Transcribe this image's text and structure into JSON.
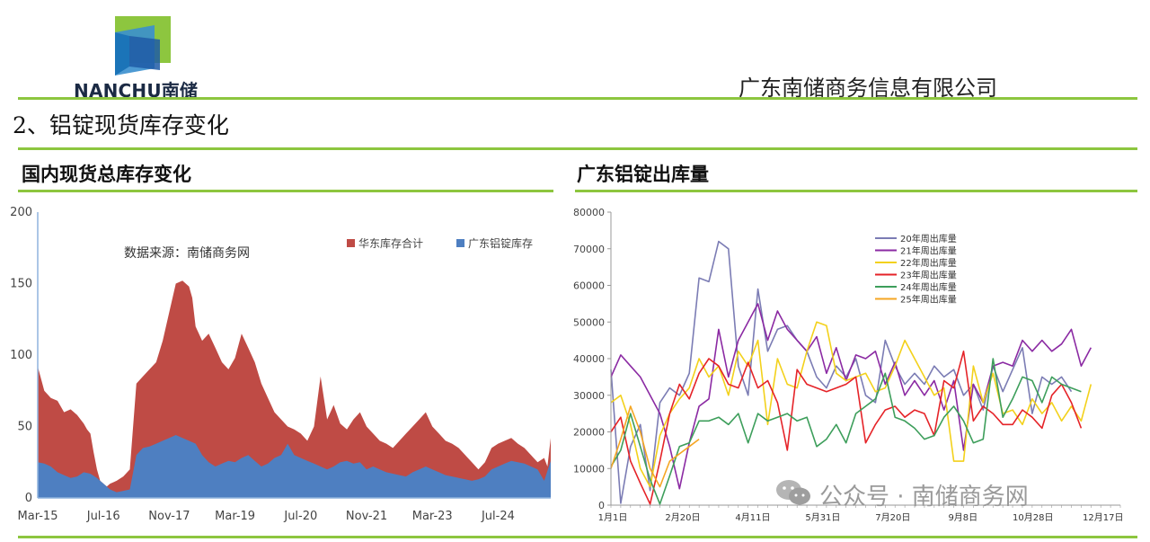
{
  "header": {
    "logo_text": "NANCHU南储",
    "company": "广东南储商务信息有限公司",
    "section_title": "2、铝锭现货库存变化",
    "brand_colors": {
      "logo_green": "#8dc63f",
      "logo_blue": "#1f5aa6",
      "divider": "#8dc63f"
    }
  },
  "watermark": {
    "icon": "wechat-icon",
    "text": "公众号 · 南储商务网"
  },
  "chart_data": [
    {
      "id": "left",
      "type": "area",
      "title": "国内现货总库存变化",
      "source_note": "数据来源：南储商务网",
      "legend_position": "top-right",
      "ylim": [
        0,
        200
      ],
      "yticks": [
        0,
        50,
        100,
        150,
        200
      ],
      "xtick_labels": [
        "Mar-15",
        "Jul-16",
        "Nov-17",
        "Mar-19",
        "Jul-20",
        "Nov-21",
        "Mar-23",
        "Jul-24"
      ],
      "x_range": [
        0,
        7.8
      ],
      "series": [
        {
          "name": "华东库存合计",
          "color": "#bf4b45",
          "x": [
            0,
            0.1,
            0.2,
            0.3,
            0.4,
            0.5,
            0.6,
            0.7,
            0.75,
            0.8,
            0.85,
            0.9,
            0.95,
            1.0,
            1.05,
            1.1,
            1.2,
            1.3,
            1.4,
            1.5,
            1.6,
            1.7,
            1.8,
            1.9,
            2.0,
            2.1,
            2.2,
            2.3,
            2.35,
            2.4,
            2.45,
            2.5,
            2.6,
            2.7,
            2.8,
            2.9,
            3.0,
            3.1,
            3.2,
            3.3,
            3.4,
            3.5,
            3.6,
            3.7,
            3.8,
            3.9,
            4.0,
            4.1,
            4.2,
            4.3,
            4.4,
            4.5,
            4.6,
            4.7,
            4.8,
            4.9,
            5.0,
            5.1,
            5.2,
            5.3,
            5.4,
            5.5,
            5.6,
            5.7,
            5.8,
            5.9,
            6.0,
            6.1,
            6.2,
            6.3,
            6.4,
            6.5,
            6.6,
            6.7,
            6.8,
            6.9,
            7.0,
            7.1,
            7.2,
            7.3,
            7.4,
            7.5,
            7.6,
            7.7,
            7.75,
            7.8
          ],
          "values": [
            92,
            75,
            70,
            68,
            60,
            62,
            58,
            52,
            48,
            45,
            32,
            20,
            12,
            10,
            8,
            10,
            12,
            15,
            20,
            80,
            85,
            90,
            95,
            110,
            130,
            150,
            152,
            148,
            140,
            120,
            115,
            110,
            115,
            105,
            95,
            90,
            98,
            115,
            105,
            95,
            80,
            70,
            60,
            55,
            50,
            48,
            45,
            40,
            50,
            85,
            55,
            65,
            52,
            48,
            55,
            60,
            50,
            45,
            40,
            38,
            35,
            40,
            45,
            50,
            55,
            60,
            50,
            45,
            40,
            38,
            35,
            30,
            25,
            20,
            25,
            35,
            38,
            40,
            42,
            38,
            35,
            30,
            25,
            28,
            22,
            42
          ]
        },
        {
          "name": "广东铝锭库存",
          "color": "#4e7fc1",
          "x": [
            0,
            0.1,
            0.2,
            0.3,
            0.4,
            0.5,
            0.6,
            0.7,
            0.8,
            0.9,
            1.0,
            1.1,
            1.2,
            1.3,
            1.4,
            1.5,
            1.6,
            1.7,
            1.8,
            1.9,
            2.0,
            2.1,
            2.2,
            2.3,
            2.4,
            2.5,
            2.6,
            2.7,
            2.8,
            2.9,
            3.0,
            3.1,
            3.2,
            3.3,
            3.4,
            3.5,
            3.6,
            3.7,
            3.8,
            3.9,
            4.0,
            4.1,
            4.2,
            4.3,
            4.4,
            4.5,
            4.6,
            4.7,
            4.8,
            4.9,
            5.0,
            5.1,
            5.2,
            5.3,
            5.4,
            5.5,
            5.6,
            5.7,
            5.8,
            5.9,
            6.0,
            6.1,
            6.2,
            6.3,
            6.4,
            6.5,
            6.6,
            6.7,
            6.8,
            6.9,
            7.0,
            7.1,
            7.2,
            7.3,
            7.4,
            7.5,
            7.6,
            7.7,
            7.8
          ],
          "values": [
            25,
            24,
            22,
            18,
            16,
            14,
            15,
            18,
            17,
            14,
            10,
            6,
            4,
            5,
            6,
            30,
            35,
            36,
            38,
            40,
            42,
            44,
            42,
            40,
            38,
            30,
            25,
            22,
            24,
            26,
            25,
            28,
            30,
            26,
            22,
            24,
            28,
            30,
            38,
            30,
            28,
            26,
            24,
            22,
            20,
            22,
            25,
            26,
            24,
            25,
            20,
            22,
            20,
            18,
            17,
            16,
            15,
            18,
            20,
            22,
            20,
            18,
            16,
            15,
            14,
            13,
            12,
            13,
            15,
            20,
            22,
            24,
            26,
            25,
            24,
            22,
            20,
            12,
            26
          ]
        }
      ]
    },
    {
      "id": "right",
      "type": "line",
      "title": "广东铝锭出库量",
      "legend_position": "top-center",
      "ylim": [
        0,
        80000
      ],
      "yticks": [
        0,
        10000,
        20000,
        30000,
        40000,
        50000,
        60000,
        70000,
        80000
      ],
      "xtick_labels": [
        "1月1日",
        "2月20日",
        "4月11日",
        "5月31日",
        "7月20日",
        "9月8日",
        "10月28日",
        "12月17日"
      ],
      "x_range": [
        0,
        52
      ],
      "series": [
        {
          "name": "20年周出库量",
          "color": "#7b7cb4",
          "values": [
            37000,
            500,
            16000,
            22000,
            4000,
            28000,
            32000,
            30000,
            36000,
            62000,
            61000,
            72000,
            70000,
            38000,
            30000,
            59000,
            42000,
            48000,
            49000,
            45000,
            42000,
            35000,
            32000,
            38000,
            35000,
            40000,
            30000,
            28000,
            45000,
            38000,
            33000,
            36000,
            33000,
            38000,
            35000,
            37000,
            30000,
            33000,
            26000,
            38000,
            31000,
            37000,
            43000,
            25000,
            35000,
            33000,
            35000,
            31000
          ]
        },
        {
          "name": "21年周出库量",
          "color": "#8b2aa3",
          "values": [
            35000,
            41000,
            38000,
            35000,
            30000,
            25000,
            16000,
            4500,
            17000,
            27000,
            29000,
            48000,
            35000,
            45000,
            50000,
            55000,
            45000,
            53000,
            48000,
            45000,
            42000,
            46000,
            36000,
            43000,
            34000,
            41000,
            40000,
            42000,
            33000,
            39000,
            30000,
            34000,
            30000,
            34000,
            26000,
            34000,
            15000,
            33000,
            28000,
            38000,
            39000,
            38000,
            45000,
            42000,
            45000,
            42000,
            44000,
            48000,
            38000,
            43000
          ]
        },
        {
          "name": "22年周出库量",
          "color": "#f3d11b",
          "values": [
            28000,
            30000,
            22000,
            10000,
            5000,
            19000,
            25000,
            29000,
            32000,
            40000,
            35000,
            38000,
            30000,
            42000,
            38000,
            45000,
            22000,
            40000,
            33000,
            32000,
            42000,
            50000,
            49000,
            36000,
            34000,
            35000,
            36000,
            31000,
            32000,
            38000,
            45000,
            40000,
            35000,
            30000,
            32000,
            12000,
            12000,
            38000,
            28000,
            36000,
            25000,
            26000,
            22000,
            29000,
            25000,
            28000,
            23000,
            27000,
            23000,
            33000
          ]
        },
        {
          "name": "23年周出库量",
          "color": "#e52328",
          "values": [
            20000,
            24000,
            12000,
            6000,
            300,
            12000,
            25000,
            33000,
            29000,
            36000,
            40000,
            38000,
            33000,
            32000,
            39000,
            32000,
            34000,
            28000,
            15000,
            37000,
            33000,
            32000,
            31000,
            32000,
            33000,
            35000,
            17000,
            22000,
            26000,
            27000,
            24000,
            26000,
            25000,
            19000,
            34000,
            32000,
            42000,
            23000,
            27000,
            25000,
            22000,
            22000,
            26000,
            24000,
            21000,
            30000,
            33000,
            28000,
            21000
          ]
        },
        {
          "name": "24年周出库量",
          "color": "#3d9e5b",
          "values": [
            10500,
            15000,
            25000,
            16000,
            7000,
            300,
            8000,
            16000,
            17000,
            23000,
            23000,
            24000,
            22000,
            25000,
            17000,
            25000,
            23000,
            24000,
            25000,
            23000,
            24000,
            16000,
            18000,
            22000,
            17000,
            25000,
            27000,
            29000,
            36000,
            24000,
            23000,
            21000,
            18000,
            19000,
            24000,
            27000,
            23000,
            17000,
            18000,
            40000,
            24000,
            29000,
            35000,
            34000,
            28000,
            35000,
            33000,
            32000,
            31000
          ]
        },
        {
          "name": "25年周出库量",
          "color": "#f5a623",
          "values": [
            10000,
            18000,
            27000,
            20000,
            10000,
            5000,
            12000,
            14000,
            16000,
            18000
          ]
        }
      ]
    }
  ]
}
